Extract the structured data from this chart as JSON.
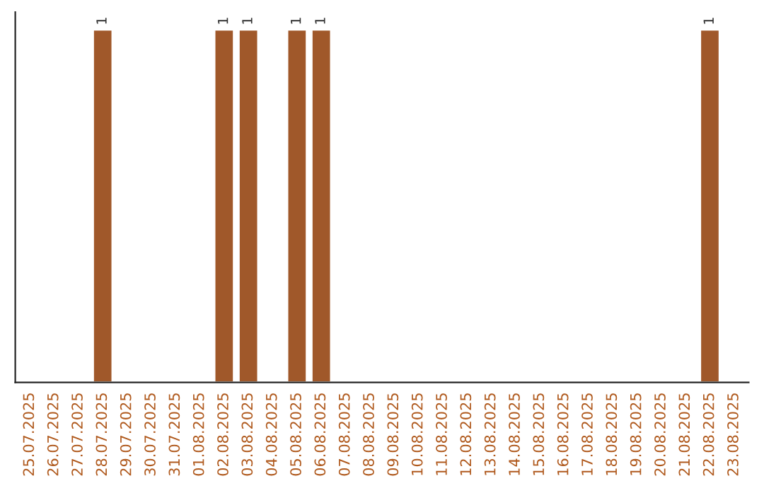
{
  "chart_data": {
    "type": "bar",
    "categories": [
      "25.07.2025",
      "26.07.2025",
      "27.07.2025",
      "28.07.2025",
      "29.07.2025",
      "30.07.2025",
      "31.07.2025",
      "01.08.2025",
      "02.08.2025",
      "03.08.2025",
      "04.08.2025",
      "05.08.2025",
      "06.08.2025",
      "07.08.2025",
      "08.08.2025",
      "09.08.2025",
      "10.08.2025",
      "11.08.2025",
      "12.08.2025",
      "13.08.2025",
      "14.08.2025",
      "15.08.2025",
      "16.08.2025",
      "17.08.2025",
      "18.08.2025",
      "19.08.2025",
      "20.08.2025",
      "21.08.2025",
      "22.08.2025",
      "23.08.2025"
    ],
    "values": [
      null,
      null,
      null,
      1,
      null,
      null,
      null,
      null,
      1,
      1,
      null,
      1,
      1,
      null,
      null,
      null,
      null,
      null,
      null,
      null,
      null,
      null,
      null,
      null,
      null,
      null,
      null,
      null,
      1,
      null
    ],
    "color": "#a0582a",
    "data_labels": true,
    "grid": false,
    "legend": false
  }
}
